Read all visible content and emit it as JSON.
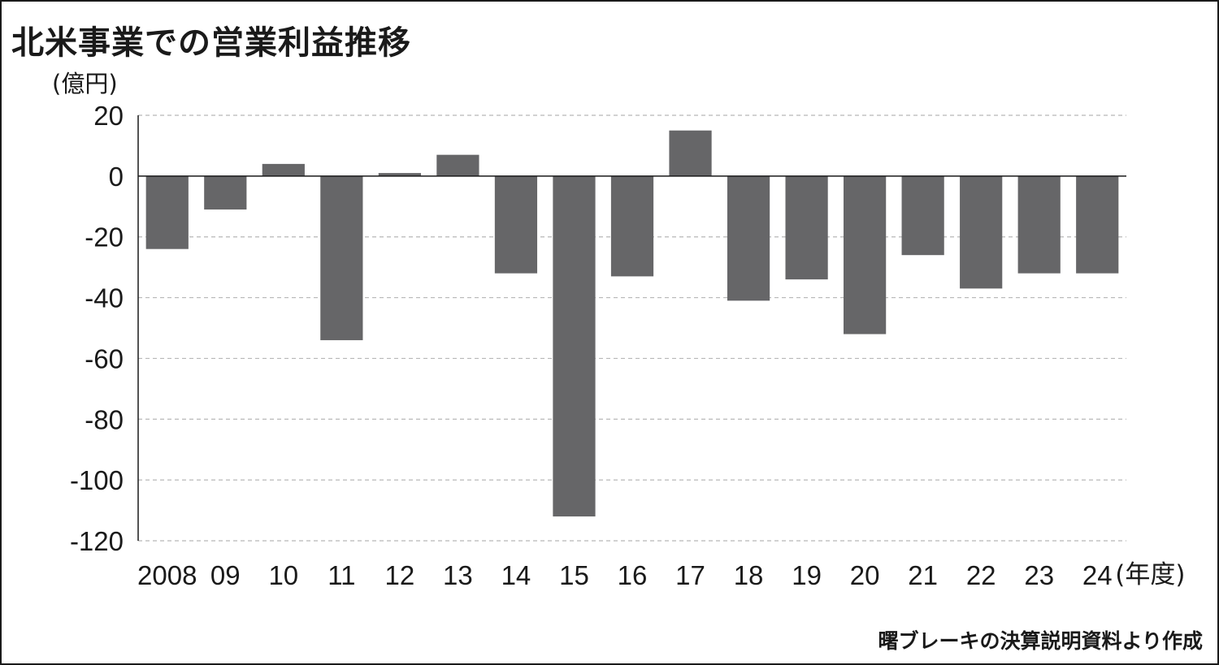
{
  "title": "北米事業での営業利益推移",
  "unit": "(億円)",
  "source": "曙ブレーキの決算説明資料より作成",
  "chart_data": {
    "type": "bar",
    "title": "北米事業での営業利益推移",
    "ylabel": "(億円)",
    "xlabel": "(年度)",
    "categories": [
      "2008",
      "09",
      "10",
      "11",
      "12",
      "13",
      "14",
      "15",
      "16",
      "17",
      "18",
      "19",
      "20",
      "21",
      "22",
      "23",
      "24"
    ],
    "values": [
      -24,
      -11,
      4,
      -54,
      1,
      7,
      -32,
      -112,
      -33,
      15,
      -41,
      -34,
      -52,
      -26,
      -37,
      -32,
      -32
    ],
    "ylim": [
      -120,
      20
    ],
    "yticks": [
      20,
      0,
      -20,
      -40,
      -60,
      -80,
      -100,
      -120
    ],
    "grid": true,
    "bar_color": "#666668",
    "legend": "none"
  }
}
